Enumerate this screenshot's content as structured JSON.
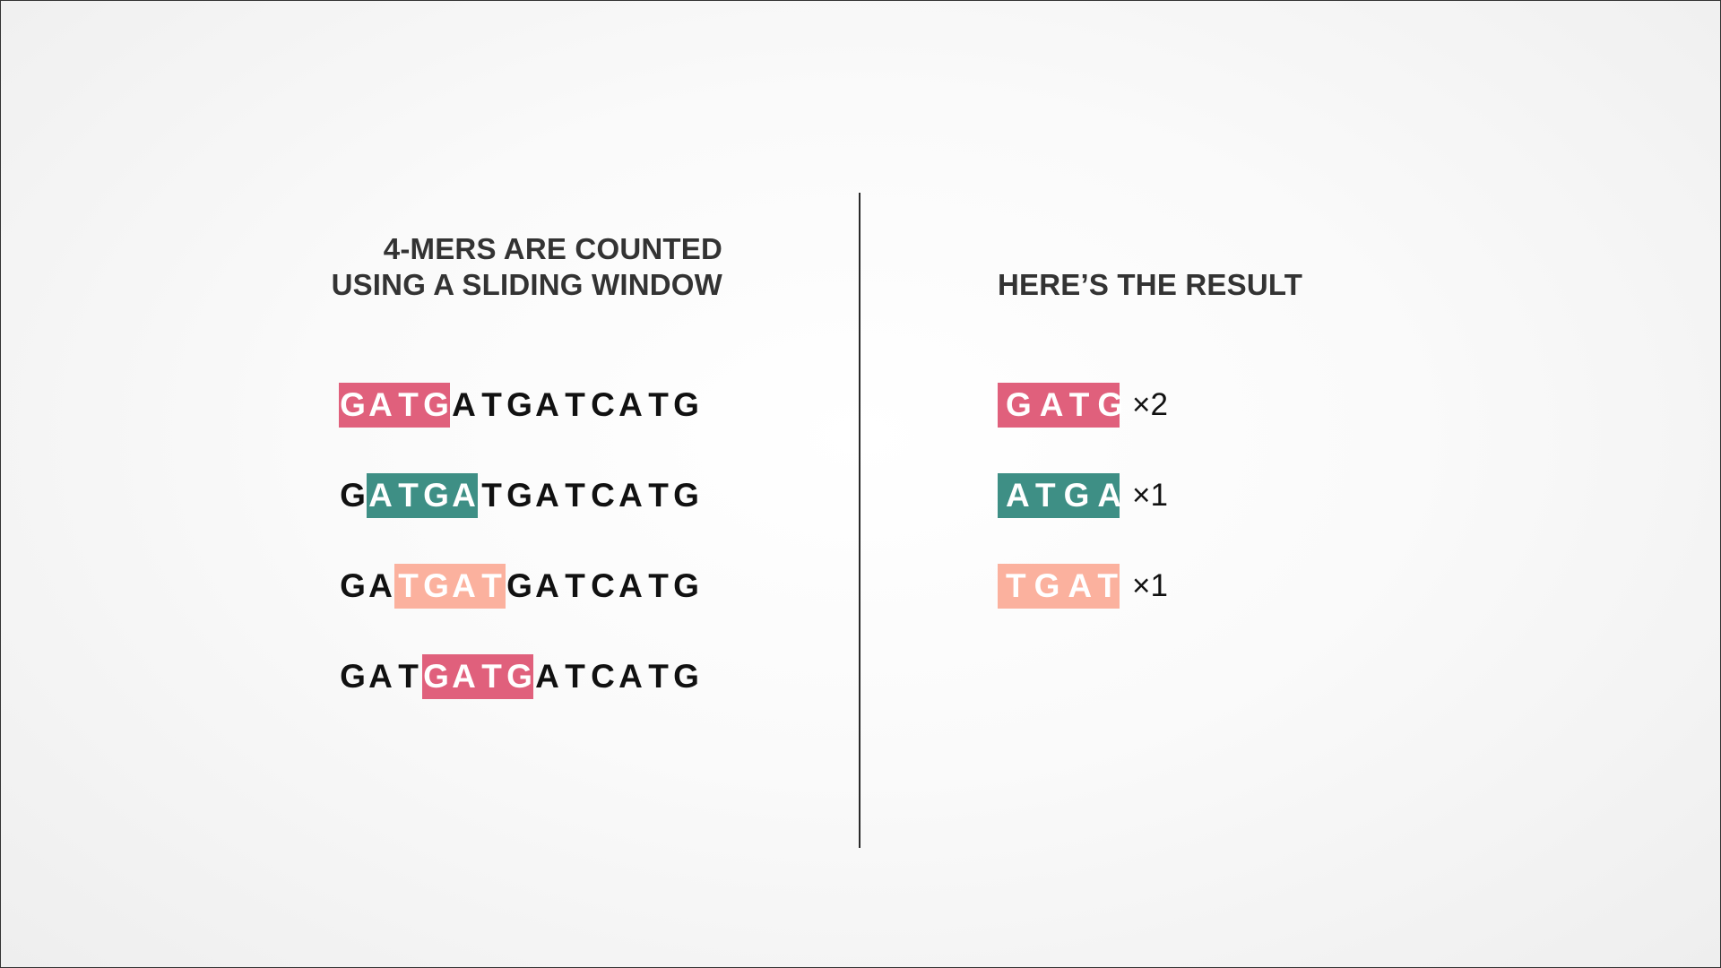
{
  "left_heading": {
    "line1": "4-MERS ARE COUNTED",
    "line2": "USING A SLIDING WINDOW"
  },
  "right_heading": "HERE’S THE RESULT",
  "colors": {
    "GATG": "#e0607c",
    "ATGA": "#3e8f85",
    "TGAT": "#fbb19e"
  },
  "sequence": "GATGATGATCATG",
  "windows": [
    {
      "start": 0,
      "kmer": "GATG"
    },
    {
      "start": 1,
      "kmer": "ATGA"
    },
    {
      "start": 2,
      "kmer": "TGAT"
    },
    {
      "start": 3,
      "kmer": "GATG"
    }
  ],
  "results": [
    {
      "kmer": "GATG",
      "count": "×2"
    },
    {
      "kmer": "ATGA",
      "count": "×1"
    },
    {
      "kmer": "TGAT",
      "count": "×1"
    }
  ]
}
